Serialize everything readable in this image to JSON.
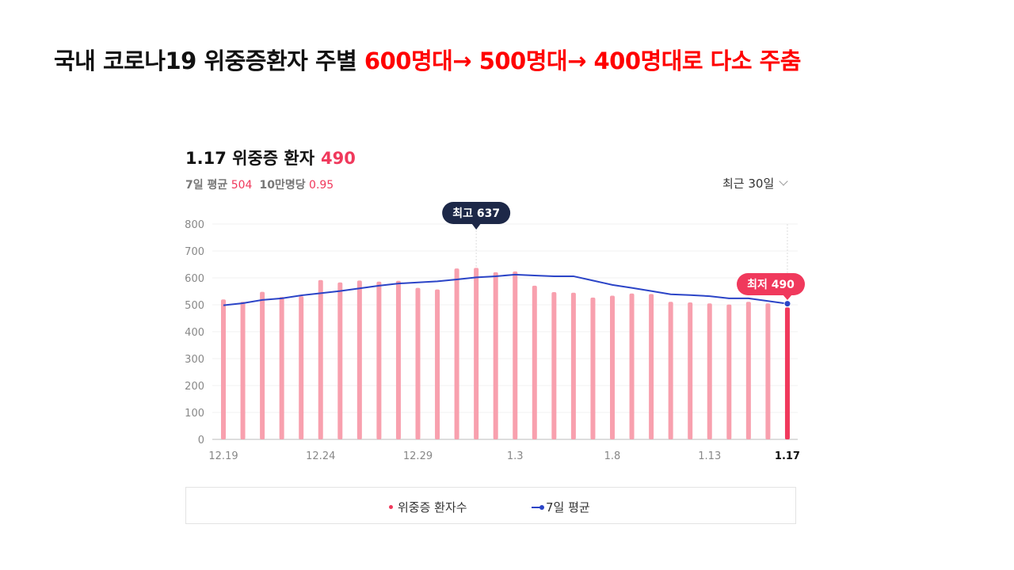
{
  "slide": {
    "title_black": "국내 코로나19 위중증환자 주별 ",
    "title_red": "600명대→ 500명대→ 400명대로 다소 주춤"
  },
  "card": {
    "title_label": "1.17 위중증 환자",
    "title_value": "490",
    "avg_label": "7일 평균",
    "avg_value": "504",
    "per_label": "10만명당",
    "per_value": "0.95",
    "range_label": "최근 30일"
  },
  "colors": {
    "bar": "#f8a0ae",
    "bar_last": "#f0395c",
    "line": "#2b44c7",
    "max_tip": "#1d2848",
    "min_tip": "#f0395c"
  },
  "chart_data": {
    "type": "bar",
    "x": [
      "12.19",
      "12.20",
      "12.21",
      "12.22",
      "12.23",
      "12.24",
      "12.25",
      "12.26",
      "12.27",
      "12.28",
      "12.29",
      "12.30",
      "12.31",
      "1.1",
      "1.2",
      "1.3",
      "1.4",
      "1.5",
      "1.6",
      "1.7",
      "1.8",
      "1.9",
      "1.10",
      "1.11",
      "1.12",
      "1.13",
      "1.14",
      "1.15",
      "1.16",
      "1.17"
    ],
    "tick_labels": [
      "12.19",
      "12.24",
      "12.29",
      "1.3",
      "1.8",
      "1.13",
      "1.17"
    ],
    "series": [
      {
        "name": "위중증 환자수",
        "type": "bar",
        "values": [
          520,
          511,
          548,
          529,
          532,
          592,
          583,
          590,
          586,
          589,
          563,
          557,
          635,
          637,
          621,
          624,
          571,
          547,
          545,
          527,
          534,
          542,
          540,
          511,
          509,
          505,
          501,
          511,
          505,
          490
        ]
      },
      {
        "name": "7일 평균",
        "type": "line",
        "values": [
          498,
          506,
          518,
          524,
          535,
          543,
          551,
          561,
          571,
          579,
          583,
          587,
          594,
          602,
          606,
          612,
          609,
          606,
          606,
          590,
          574,
          563,
          551,
          539,
          536,
          532,
          524,
          524,
          514,
          504
        ]
      }
    ],
    "ylim": [
      0,
      800
    ],
    "yticks": [
      0,
      100,
      200,
      300,
      400,
      500,
      600,
      700,
      800
    ],
    "max_label": "최고 637",
    "min_label": "최저 490",
    "legend_position": "bottom"
  }
}
